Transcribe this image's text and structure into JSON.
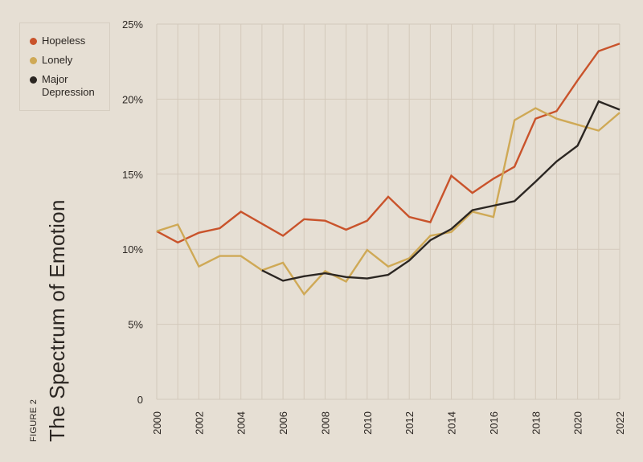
{
  "figure": {
    "label": "FIGURE 2",
    "title": "The Spectrum of Emotion"
  },
  "legend": {
    "items": [
      {
        "label": "Hopeless",
        "color": "#c9532b"
      },
      {
        "label": "Lonely",
        "color": "#cfa956"
      },
      {
        "label": "Major Depression",
        "color": "#2b2622"
      }
    ]
  },
  "chart_data": {
    "type": "line",
    "title": "The Spectrum of Emotion",
    "xlabel": "",
    "ylabel": "",
    "x": [
      2000,
      2001,
      2002,
      2003,
      2004,
      2005,
      2006,
      2007,
      2008,
      2009,
      2010,
      2011,
      2012,
      2013,
      2014,
      2015,
      2016,
      2017,
      2018,
      2019,
      2020,
      2021,
      2022
    ],
    "xticks": [
      "2000",
      "2002",
      "2004",
      "2006",
      "2008",
      "2010",
      "2012",
      "2014",
      "2016",
      "2018",
      "2020",
      "2022"
    ],
    "yticks": [
      "0",
      "5%",
      "10%",
      "15%",
      "20%",
      "25%"
    ],
    "ylim": [
      0,
      25
    ],
    "xlim": [
      2000,
      2022
    ],
    "grid": true,
    "legend_position": "top-left",
    "series": [
      {
        "name": "Hopeless",
        "color": "#c9532b",
        "values": [
          11.2,
          10.45,
          11.1,
          11.4,
          12.5,
          11.7,
          10.9,
          12.0,
          11.9,
          11.3,
          11.9,
          13.5,
          12.15,
          11.8,
          14.9,
          13.75,
          14.7,
          15.5,
          18.7,
          19.2,
          21.25,
          23.2,
          23.7
        ]
      },
      {
        "name": "Lonely",
        "color": "#cfa956",
        "values": [
          11.2,
          11.65,
          8.85,
          9.55,
          9.55,
          8.6,
          9.1,
          7.0,
          8.55,
          7.85,
          9.95,
          8.85,
          9.4,
          10.9,
          11.15,
          12.5,
          12.15,
          18.6,
          19.4,
          18.7,
          18.3,
          17.9,
          19.1
        ]
      },
      {
        "name": "Major Depression",
        "color": "#2b2622",
        "values": [
          null,
          null,
          null,
          null,
          null,
          8.6,
          7.9,
          8.2,
          8.4,
          8.15,
          8.05,
          8.3,
          9.25,
          10.6,
          11.35,
          12.6,
          12.9,
          13.2,
          14.5,
          15.85,
          16.9,
          19.85,
          19.3
        ]
      }
    ]
  }
}
